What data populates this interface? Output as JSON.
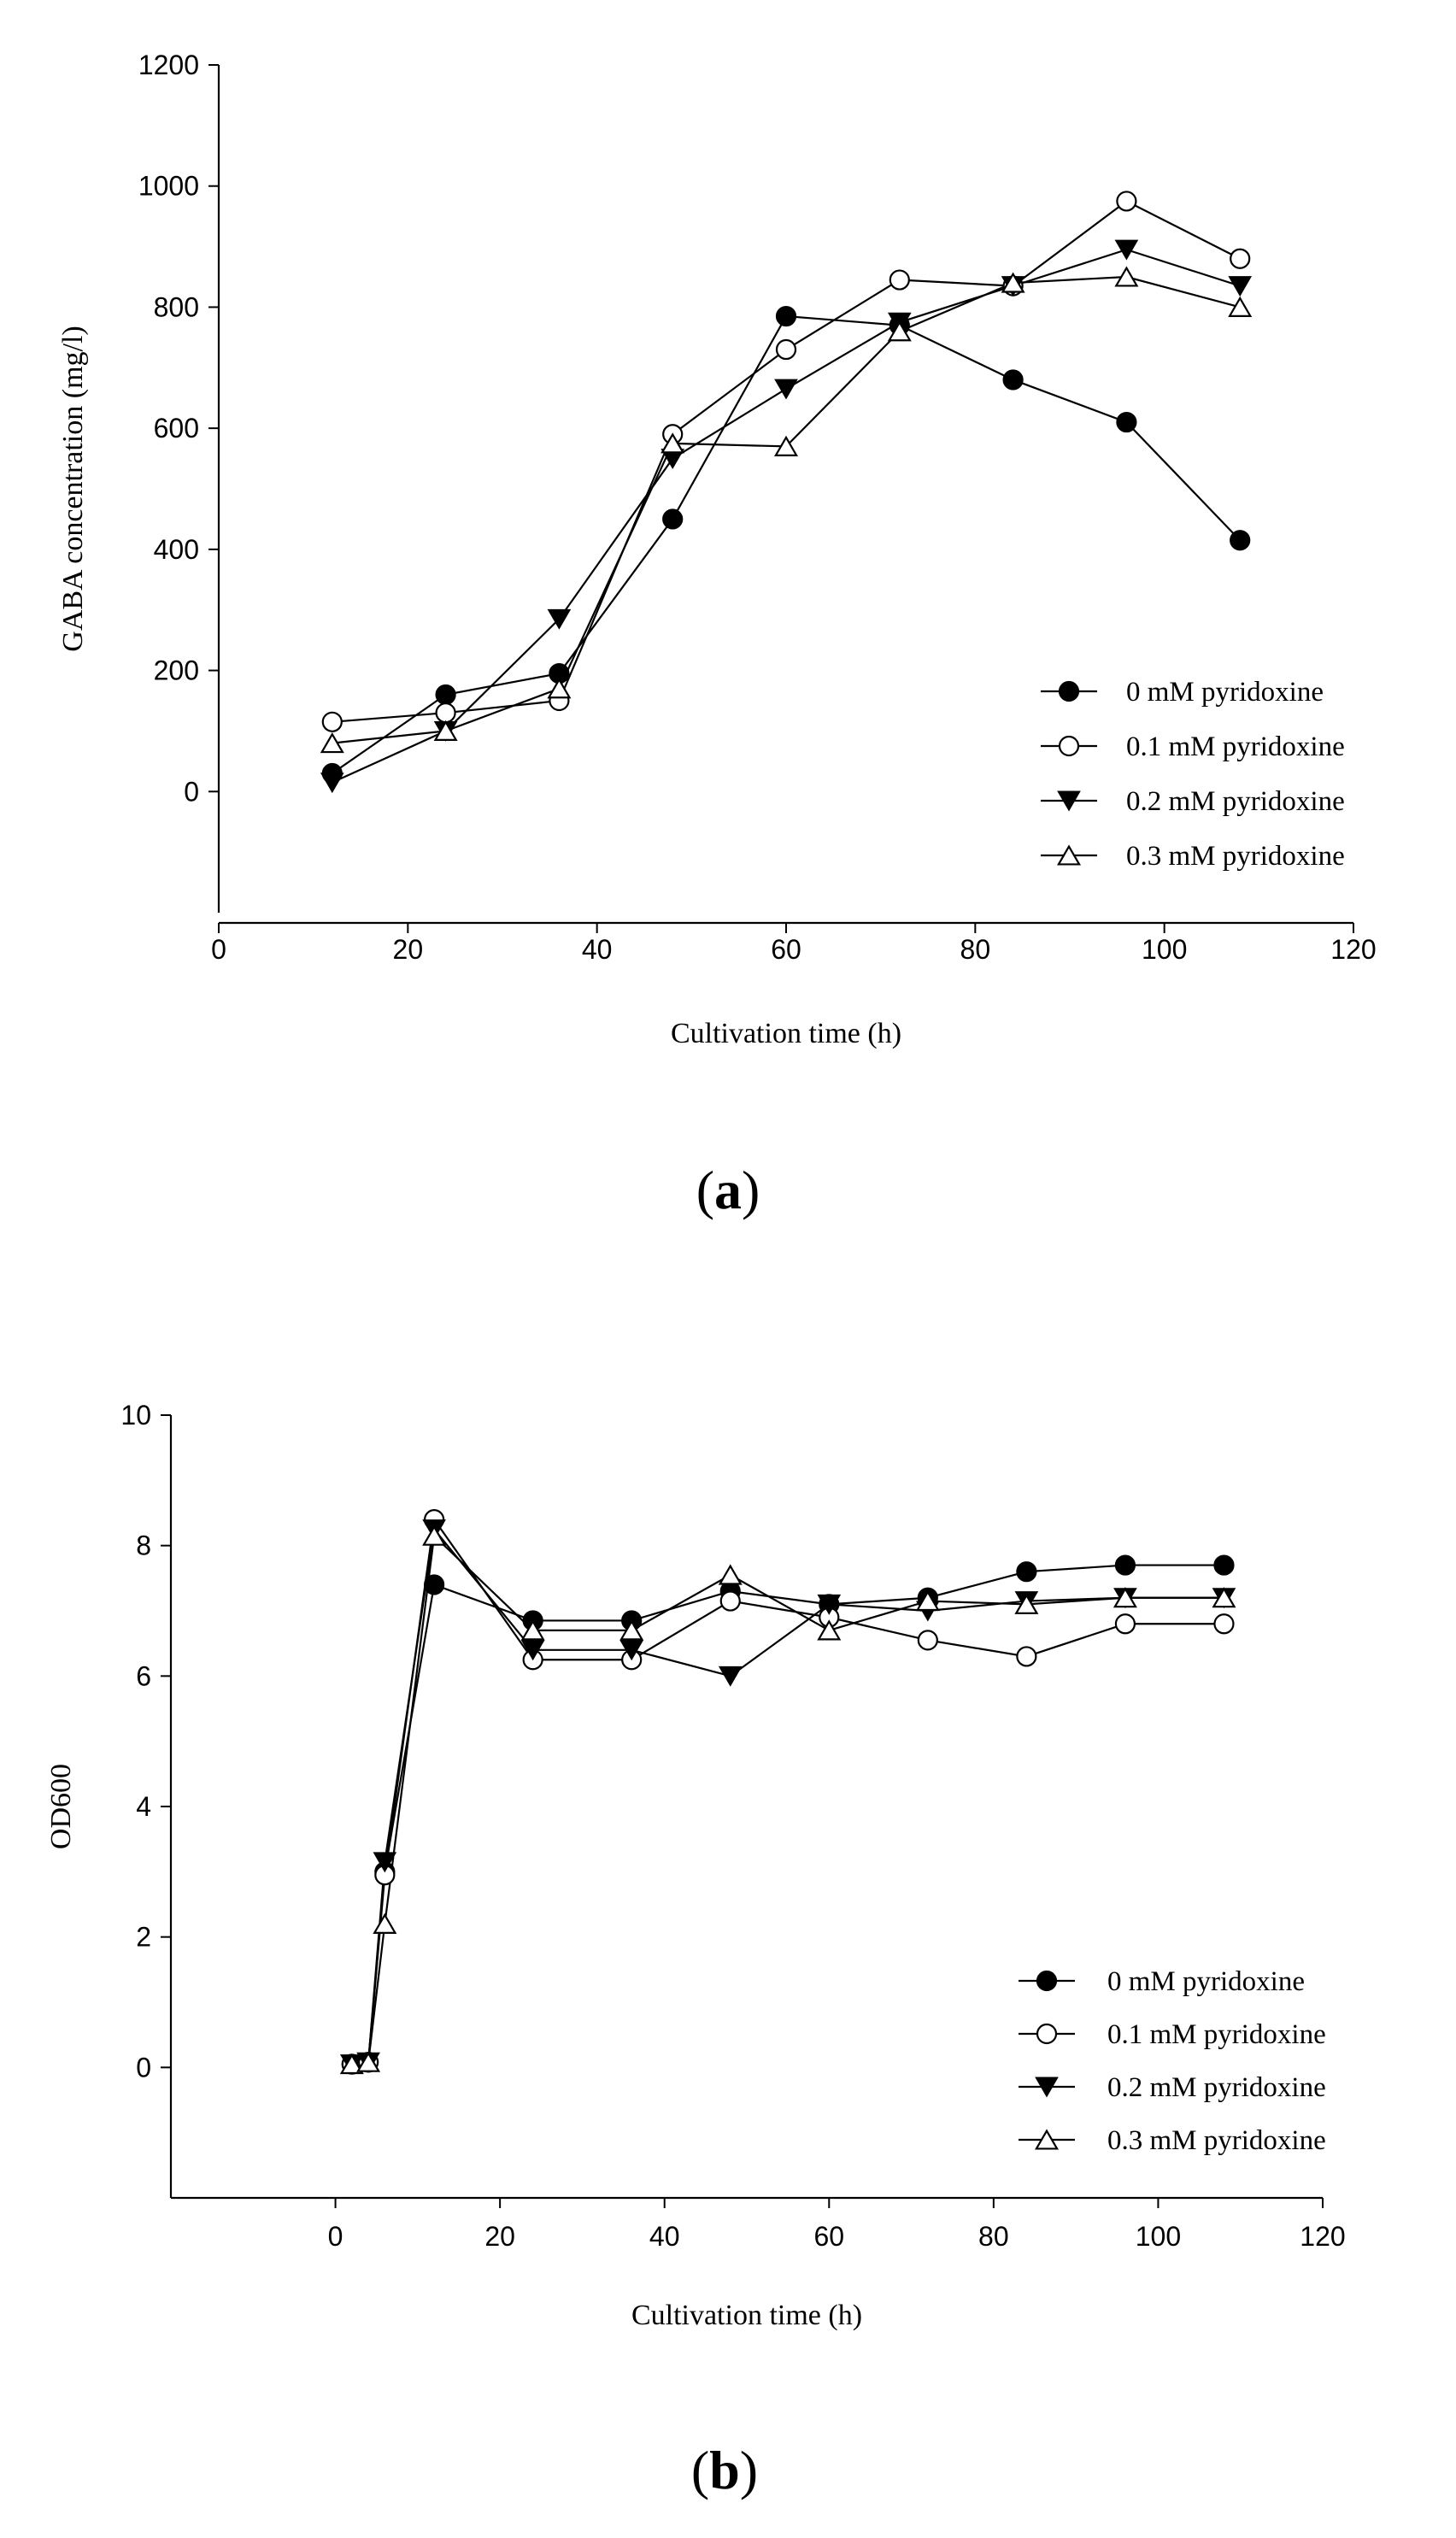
{
  "chart_data": [
    {
      "type": "line",
      "panel_label": "a",
      "xlabel": "Cultivation time (h)",
      "ylabel": "GABA concentration (mg/l)",
      "xlim": [
        0,
        120
      ],
      "ylim": [
        -200,
        1200
      ],
      "xticks": [
        0,
        20,
        40,
        60,
        80,
        100,
        120
      ],
      "yticks": [
        0,
        200,
        400,
        600,
        800,
        1000,
        1200
      ],
      "grid": false,
      "legend_position": "bottom-right",
      "series": [
        {
          "name": "0 mM pyridoxine",
          "marker": "filled-circle",
          "x": [
            12,
            24,
            36,
            48,
            60,
            72,
            84,
            96,
            108
          ],
          "y": [
            30,
            160,
            195,
            450,
            785,
            770,
            680,
            610,
            415
          ]
        },
        {
          "name": "0.1 mM pyridoxine",
          "marker": "open-circle",
          "x": [
            12,
            24,
            36,
            48,
            60,
            72,
            84,
            96,
            108
          ],
          "y": [
            115,
            130,
            150,
            590,
            730,
            845,
            835,
            975,
            880
          ]
        },
        {
          "name": "0.2 mM pyridoxine",
          "marker": "filled-triangle-down",
          "x": [
            12,
            24,
            36,
            48,
            60,
            72,
            84,
            96,
            108
          ],
          "y": [
            15,
            100,
            285,
            550,
            665,
            775,
            835,
            895,
            835
          ]
        },
        {
          "name": "0.3 mM pyridoxine",
          "marker": "open-triangle-up",
          "x": [
            12,
            24,
            36,
            48,
            60,
            72,
            84,
            96,
            108
          ],
          "y": [
            80,
            100,
            170,
            575,
            570,
            760,
            840,
            850,
            800
          ]
        }
      ]
    },
    {
      "type": "line",
      "panel_label": "b",
      "xlabel": "Cultivation time (h)",
      "ylabel": "OD600",
      "xlim": [
        -20,
        120
      ],
      "ylim": [
        -2,
        10
      ],
      "xticks": [
        0,
        20,
        40,
        60,
        80,
        100,
        120
      ],
      "yticks": [
        0,
        2,
        4,
        6,
        8,
        10
      ],
      "grid": false,
      "legend_position": "bottom-right",
      "series": [
        {
          "name": "0 mM pyridoxine",
          "marker": "filled-circle",
          "x": [
            2,
            4,
            6,
            12,
            24,
            36,
            48,
            60,
            72,
            84,
            96,
            108
          ],
          "y": [
            0.05,
            0.08,
            3.0,
            7.4,
            6.85,
            6.85,
            7.3,
            7.1,
            7.2,
            7.6,
            7.7,
            7.7
          ]
        },
        {
          "name": "0.1 mM pyridoxine",
          "marker": "open-circle",
          "x": [
            2,
            4,
            6,
            12,
            24,
            36,
            48,
            60,
            72,
            84,
            96,
            108
          ],
          "y": [
            0.05,
            0.08,
            2.95,
            8.4,
            6.25,
            6.25,
            7.15,
            6.9,
            6.55,
            6.3,
            6.8,
            6.8
          ]
        },
        {
          "name": "0.2 mM pyridoxine",
          "marker": "filled-triangle-down",
          "x": [
            2,
            4,
            6,
            12,
            24,
            36,
            48,
            60,
            72,
            84,
            96,
            108
          ],
          "y": [
            0.05,
            0.08,
            3.15,
            8.25,
            6.4,
            6.4,
            6.0,
            7.1,
            7.0,
            7.15,
            7.2,
            7.2
          ]
        },
        {
          "name": "0.3 mM pyridoxine",
          "marker": "open-triangle-up",
          "x": [
            2,
            4,
            6,
            12,
            24,
            36,
            48,
            60,
            72,
            84,
            96,
            108
          ],
          "y": [
            0.05,
            0.08,
            2.2,
            8.15,
            6.7,
            6.7,
            7.55,
            6.7,
            7.15,
            7.1,
            7.2,
            7.2
          ]
        }
      ]
    }
  ]
}
